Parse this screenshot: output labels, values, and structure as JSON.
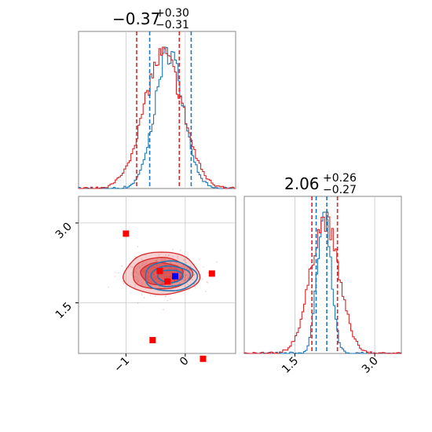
{
  "chart_data": {
    "type": "corner",
    "parameters": [
      {
        "title": {
          "main": "−0.37",
          "plus": "+0.30",
          "minus": "−0.31"
        },
        "xlim": [
          -1.8,
          0.85
        ],
        "ticks": [
          -1,
          0
        ],
        "tick_labels": [
          "−1",
          "0"
        ]
      },
      {
        "title": {
          "main": "2.06",
          "plus": "+0.26",
          "minus": "−0.27"
        },
        "xlim": [
          0.55,
          3.5
        ],
        "ylim": [
          0.55,
          3.5
        ],
        "ticks": [
          1.5,
          3.0
        ],
        "tick_labels": [
          "1.5",
          "3.0"
        ]
      }
    ],
    "grid": true,
    "series": [
      {
        "color": "#1f77b4",
        "param1": {
          "mean": -0.27,
          "sd": 0.24,
          "quantiles": [
            -0.6,
            0.1
          ]
        },
        "param2": {
          "mean": 2.05,
          "sd": 0.13,
          "quantiles": [
            1.9,
            2.1
          ]
        },
        "contour_center": [
          -0.25,
          2.0
        ]
      },
      {
        "color": "#d62728",
        "param1": {
          "mean": -0.37,
          "sd": 0.33,
          "quantiles": [
            -0.82,
            -0.1
          ]
        },
        "param2": {
          "mean": 2.06,
          "sd": 0.27,
          "quantiles": [
            1.82,
            2.3
          ]
        },
        "contour_center": [
          -0.4,
          2.05
        ]
      }
    ],
    "red_markers": [
      [
        -1.0,
        2.8
      ],
      [
        -0.43,
        2.1
      ],
      [
        -0.55,
        0.8
      ],
      [
        -0.3,
        1.9
      ],
      [
        0.45,
        2.05
      ],
      [
        0.3,
        0.45
      ]
    ],
    "blue_marker": [
      -0.17,
      2.0
    ]
  }
}
